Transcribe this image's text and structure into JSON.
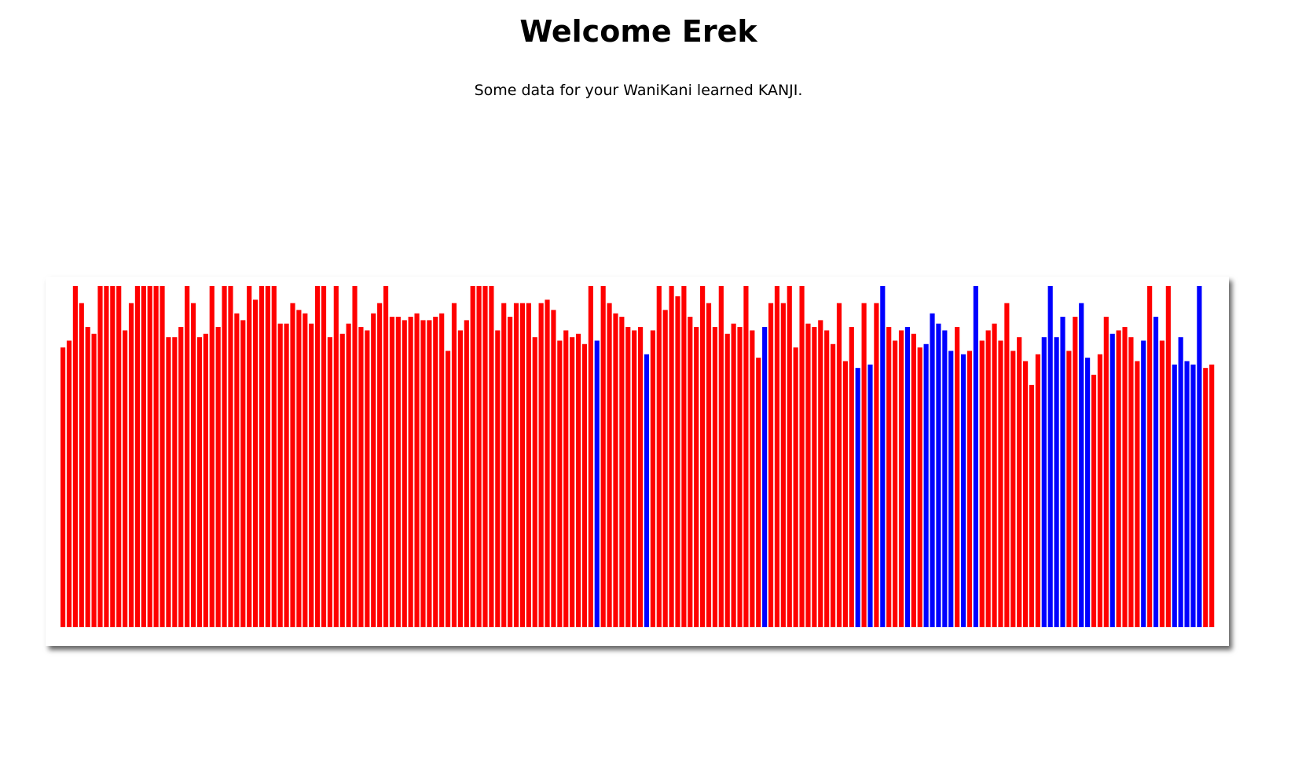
{
  "header": {
    "title": "Welcome Erek",
    "subtitle": "Some data for your WaniKani learned KANJI."
  },
  "colors": {
    "background": "#ffffff",
    "bar_default": "#ff0000",
    "bar_highlight": "#0000ff"
  },
  "chart_data": {
    "type": "bar",
    "title": "",
    "xlabel": "",
    "ylabel": "",
    "ylim": [
      0,
      100
    ],
    "grid": false,
    "legend": "none",
    "series": [
      {
        "values": [
          82,
          84,
          100,
          95,
          88,
          86,
          100,
          100,
          100,
          100,
          87,
          95,
          100,
          100,
          100,
          100,
          100,
          85,
          85,
          88,
          100,
          95,
          85,
          86,
          100,
          88,
          100,
          100,
          92,
          90,
          100,
          96,
          100,
          100,
          100,
          89,
          89,
          95,
          93,
          92,
          89,
          100,
          100,
          85,
          100,
          86,
          89,
          100,
          88,
          87,
          92,
          95,
          100,
          91,
          91,
          90,
          91,
          92,
          90,
          90,
          91,
          92,
          81,
          95,
          87,
          90,
          100,
          100,
          100,
          100,
          87,
          95,
          91,
          95,
          95,
          95,
          85,
          95,
          96,
          93,
          84,
          87,
          85,
          86,
          83,
          100,
          84,
          100,
          95,
          92,
          91,
          88,
          87,
          88,
          80,
          87,
          100,
          93,
          100,
          97,
          100,
          91,
          88,
          100,
          95,
          88,
          100,
          86,
          89,
          88,
          100,
          87,
          79,
          88,
          95,
          100,
          95,
          100,
          82,
          100,
          89,
          88,
          90,
          87,
          83,
          95,
          78,
          88,
          76,
          95,
          77,
          95,
          100,
          88,
          84,
          87,
          88,
          86,
          82,
          83,
          92,
          89,
          87,
          81,
          88,
          80,
          81,
          100,
          84,
          87,
          89,
          84,
          95,
          81,
          85,
          78,
          71,
          80,
          85,
          100,
          85,
          91,
          81,
          91,
          95,
          79,
          74,
          80,
          91,
          86,
          87,
          88,
          85,
          78,
          84,
          100,
          91,
          84,
          100,
          77,
          85,
          78,
          77,
          100,
          76,
          77
        ]
      }
    ],
    "highlighted_indices": [
      86,
      94,
      113,
      128,
      130,
      132,
      136,
      139,
      140,
      141,
      142,
      143,
      145,
      147,
      158,
      159,
      160,
      161,
      164,
      165,
      169,
      174,
      176,
      179,
      180,
      181,
      182,
      183
    ]
  }
}
